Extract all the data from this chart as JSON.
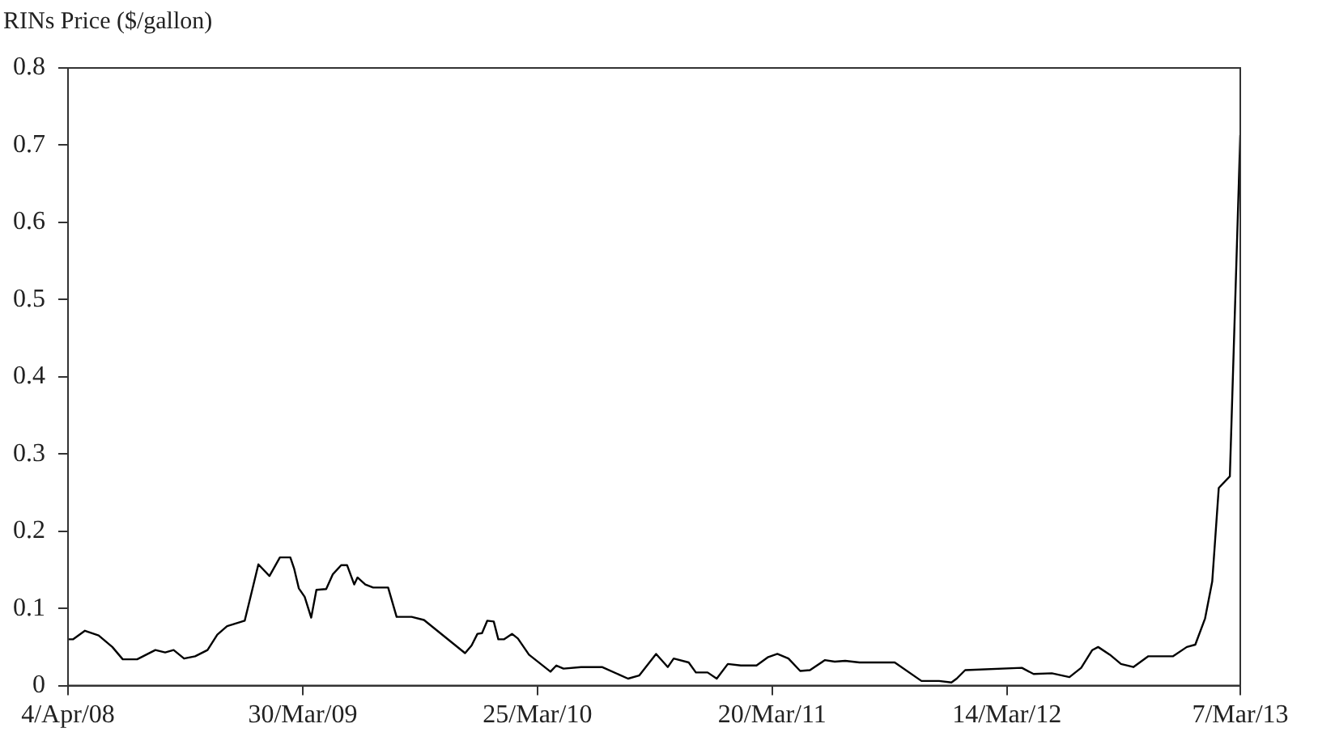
{
  "chart_data": {
    "type": "line",
    "ylabel": "RINs Price ($/gallon)",
    "x": [
      "2008-04-04",
      "2008-04-12",
      "2008-04-30",
      "2008-05-21",
      "2008-06-11",
      "2008-06-27",
      "2008-07-19",
      "2008-08-16",
      "2008-08-31",
      "2008-09-13",
      "2008-09-29",
      "2008-10-16",
      "2008-11-04",
      "2008-11-19",
      "2008-12-04",
      "2008-12-31",
      "2009-01-09",
      "2009-01-21",
      "2009-02-07",
      "2009-02-23",
      "2009-03-11",
      "2009-03-17",
      "2009-03-24",
      "2009-04-02",
      "2009-04-12",
      "2009-04-20",
      "2009-05-05",
      "2009-05-15",
      "2009-05-28",
      "2009-06-06",
      "2009-06-17",
      "2009-06-22",
      "2009-07-04",
      "2009-07-16",
      "2009-08-08",
      "2009-08-21",
      "2009-09-13",
      "2009-10-02",
      "2009-12-04",
      "2009-12-14",
      "2009-12-23",
      "2009-12-30",
      "2010-01-07",
      "2010-01-17",
      "2010-01-24",
      "2010-02-02",
      "2010-02-14",
      "2010-02-23",
      "2010-03-12",
      "2010-04-14",
      "2010-04-23",
      "2010-05-04",
      "2010-05-31",
      "2010-07-02",
      "2010-08-11",
      "2010-08-28",
      "2010-09-23",
      "2010-10-11",
      "2010-10-20",
      "2010-11-12",
      "2010-11-23",
      "2010-12-11",
      "2010-12-25",
      "2011-01-11",
      "2011-01-31",
      "2011-02-24",
      "2011-03-14",
      "2011-03-28",
      "2011-04-14",
      "2011-05-02",
      "2011-05-17",
      "2011-06-09",
      "2011-06-24",
      "2011-07-10",
      "2011-08-01",
      "2011-09-24",
      "2011-11-04",
      "2011-12-01",
      "2011-12-20",
      "2011-12-28",
      "2012-01-10",
      "2012-04-06",
      "2012-04-24",
      "2012-05-22",
      "2012-06-18",
      "2012-07-06",
      "2012-07-23",
      "2012-08-01",
      "2012-08-19",
      "2012-09-05",
      "2012-09-24",
      "2012-10-17",
      "2012-11-24",
      "2012-12-15",
      "2012-12-28",
      "2013-01-12",
      "2013-01-23",
      "2013-02-02",
      "2013-02-19",
      "2013-03-07"
    ],
    "series": [
      {
        "color": "#000000",
        "values": [
          0.06,
          0.06,
          0.071,
          0.065,
          0.05,
          0.034,
          0.034,
          0.046,
          0.043,
          0.046,
          0.035,
          0.038,
          0.046,
          0.066,
          0.077,
          0.084,
          0.115,
          0.157,
          0.142,
          0.166,
          0.166,
          0.151,
          0.126,
          0.115,
          0.088,
          0.124,
          0.125,
          0.144,
          0.156,
          0.156,
          0.131,
          0.14,
          0.131,
          0.127,
          0.127,
          0.089,
          0.089,
          0.085,
          0.042,
          0.052,
          0.067,
          0.068,
          0.084,
          0.083,
          0.06,
          0.06,
          0.067,
          0.061,
          0.04,
          0.018,
          0.026,
          0.022,
          0.024,
          0.024,
          0.009,
          0.013,
          0.041,
          0.024,
          0.035,
          0.03,
          0.017,
          0.017,
          0.009,
          0.028,
          0.026,
          0.026,
          0.037,
          0.041,
          0.035,
          0.019,
          0.02,
          0.033,
          0.031,
          0.032,
          0.03,
          0.03,
          0.006,
          0.006,
          0.004,
          0.009,
          0.02,
          0.023,
          0.015,
          0.016,
          0.011,
          0.023,
          0.046,
          0.05,
          0.04,
          0.028,
          0.024,
          0.038,
          0.038,
          0.05,
          0.053,
          0.087,
          0.135,
          0.256,
          0.271,
          0.713
        ]
      }
    ],
    "xlim": [
      "2008-04-04",
      "2013-03-07"
    ],
    "xticks": [
      {
        "value": "2008-04-04",
        "label": "4/Apr/08"
      },
      {
        "value": "2009-03-30",
        "label": "30/Mar/09"
      },
      {
        "value": "2010-03-25",
        "label": "25/Mar/10"
      },
      {
        "value": "2011-03-20",
        "label": "20/Mar/11"
      },
      {
        "value": "2012-03-14",
        "label": "14/Mar/12"
      },
      {
        "value": "2013-03-07",
        "label": "7/Mar/13"
      }
    ],
    "ylim": [
      0,
      0.8
    ],
    "yticks": [
      0,
      0.1,
      0.2,
      0.3,
      0.4,
      0.5,
      0.6,
      0.7,
      0.8
    ],
    "grid": false,
    "legend": false,
    "marker": "none",
    "line_style": "solid"
  }
}
